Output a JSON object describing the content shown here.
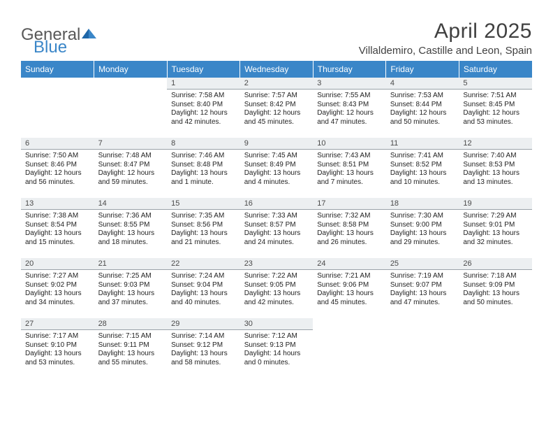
{
  "brand": {
    "part1": "General",
    "part2": "Blue"
  },
  "title": "April 2025",
  "location": "Villaldemiro, Castille and Leon, Spain",
  "header_bg": "#3a86c8",
  "daynum_bg": "#eceff1",
  "daynum_border": "#9aa3a9",
  "weekdays": [
    "Sunday",
    "Monday",
    "Tuesday",
    "Wednesday",
    "Thursday",
    "Friday",
    "Saturday"
  ],
  "weeks": [
    [
      null,
      null,
      {
        "n": "1",
        "sr": "7:58 AM",
        "ss": "8:40 PM",
        "dl": "12 hours and 42 minutes."
      },
      {
        "n": "2",
        "sr": "7:57 AM",
        "ss": "8:42 PM",
        "dl": "12 hours and 45 minutes."
      },
      {
        "n": "3",
        "sr": "7:55 AM",
        "ss": "8:43 PM",
        "dl": "12 hours and 47 minutes."
      },
      {
        "n": "4",
        "sr": "7:53 AM",
        "ss": "8:44 PM",
        "dl": "12 hours and 50 minutes."
      },
      {
        "n": "5",
        "sr": "7:51 AM",
        "ss": "8:45 PM",
        "dl": "12 hours and 53 minutes."
      }
    ],
    [
      {
        "n": "6",
        "sr": "7:50 AM",
        "ss": "8:46 PM",
        "dl": "12 hours and 56 minutes."
      },
      {
        "n": "7",
        "sr": "7:48 AM",
        "ss": "8:47 PM",
        "dl": "12 hours and 59 minutes."
      },
      {
        "n": "8",
        "sr": "7:46 AM",
        "ss": "8:48 PM",
        "dl": "13 hours and 1 minute."
      },
      {
        "n": "9",
        "sr": "7:45 AM",
        "ss": "8:49 PM",
        "dl": "13 hours and 4 minutes."
      },
      {
        "n": "10",
        "sr": "7:43 AM",
        "ss": "8:51 PM",
        "dl": "13 hours and 7 minutes."
      },
      {
        "n": "11",
        "sr": "7:41 AM",
        "ss": "8:52 PM",
        "dl": "13 hours and 10 minutes."
      },
      {
        "n": "12",
        "sr": "7:40 AM",
        "ss": "8:53 PM",
        "dl": "13 hours and 13 minutes."
      }
    ],
    [
      {
        "n": "13",
        "sr": "7:38 AM",
        "ss": "8:54 PM",
        "dl": "13 hours and 15 minutes."
      },
      {
        "n": "14",
        "sr": "7:36 AM",
        "ss": "8:55 PM",
        "dl": "13 hours and 18 minutes."
      },
      {
        "n": "15",
        "sr": "7:35 AM",
        "ss": "8:56 PM",
        "dl": "13 hours and 21 minutes."
      },
      {
        "n": "16",
        "sr": "7:33 AM",
        "ss": "8:57 PM",
        "dl": "13 hours and 24 minutes."
      },
      {
        "n": "17",
        "sr": "7:32 AM",
        "ss": "8:58 PM",
        "dl": "13 hours and 26 minutes."
      },
      {
        "n": "18",
        "sr": "7:30 AM",
        "ss": "9:00 PM",
        "dl": "13 hours and 29 minutes."
      },
      {
        "n": "19",
        "sr": "7:29 AM",
        "ss": "9:01 PM",
        "dl": "13 hours and 32 minutes."
      }
    ],
    [
      {
        "n": "20",
        "sr": "7:27 AM",
        "ss": "9:02 PM",
        "dl": "13 hours and 34 minutes."
      },
      {
        "n": "21",
        "sr": "7:25 AM",
        "ss": "9:03 PM",
        "dl": "13 hours and 37 minutes."
      },
      {
        "n": "22",
        "sr": "7:24 AM",
        "ss": "9:04 PM",
        "dl": "13 hours and 40 minutes."
      },
      {
        "n": "23",
        "sr": "7:22 AM",
        "ss": "9:05 PM",
        "dl": "13 hours and 42 minutes."
      },
      {
        "n": "24",
        "sr": "7:21 AM",
        "ss": "9:06 PM",
        "dl": "13 hours and 45 minutes."
      },
      {
        "n": "25",
        "sr": "7:19 AM",
        "ss": "9:07 PM",
        "dl": "13 hours and 47 minutes."
      },
      {
        "n": "26",
        "sr": "7:18 AM",
        "ss": "9:09 PM",
        "dl": "13 hours and 50 minutes."
      }
    ],
    [
      {
        "n": "27",
        "sr": "7:17 AM",
        "ss": "9:10 PM",
        "dl": "13 hours and 53 minutes."
      },
      {
        "n": "28",
        "sr": "7:15 AM",
        "ss": "9:11 PM",
        "dl": "13 hours and 55 minutes."
      },
      {
        "n": "29",
        "sr": "7:14 AM",
        "ss": "9:12 PM",
        "dl": "13 hours and 58 minutes."
      },
      {
        "n": "30",
        "sr": "7:12 AM",
        "ss": "9:13 PM",
        "dl": "14 hours and 0 minutes."
      },
      null,
      null,
      null
    ]
  ],
  "labels": {
    "sunrise": "Sunrise: ",
    "sunset": "Sunset: ",
    "daylight": "Daylight: "
  }
}
